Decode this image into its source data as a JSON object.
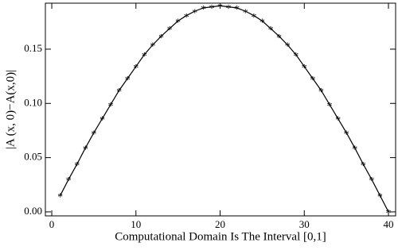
{
  "chart_data": {
    "type": "line",
    "x_label": "Computational Domain Is The Interval [0,1]",
    "y_label": "|A (x, 0)−A(x,0)|",
    "x": [
      1,
      2,
      3,
      4,
      5,
      6,
      7,
      8,
      9,
      10,
      11,
      12,
      13,
      14,
      15,
      16,
      17,
      18,
      19,
      20,
      21,
      22,
      23,
      24,
      25,
      26,
      27,
      28,
      29,
      30,
      31,
      32,
      33,
      34,
      35,
      36,
      37,
      38,
      39,
      40
    ],
    "series": [
      {
        "color": "#000000",
        "marker": "*",
        "values": [
          0.015,
          0.03,
          0.044,
          0.059,
          0.073,
          0.086,
          0.099,
          0.112,
          0.123,
          0.134,
          0.145,
          0.154,
          0.162,
          0.169,
          0.176,
          0.181,
          0.185,
          0.188,
          0.189,
          0.19,
          0.189,
          0.188,
          0.185,
          0.181,
          0.176,
          0.169,
          0.162,
          0.154,
          0.145,
          0.134,
          0.123,
          0.112,
          0.099,
          0.086,
          0.073,
          0.059,
          0.044,
          0.03,
          0.015,
          0.0
        ]
      }
    ],
    "xlim": [
      -0.76,
      40.85
    ],
    "xticks": [
      0,
      10,
      20,
      30,
      40
    ],
    "ylim": [
      -0.0037,
      0.1924
    ],
    "yticks": [
      {
        "value": 0,
        "label": "0.00"
      },
      {
        "value": 0.05,
        "label": "0.05"
      },
      {
        "value": 0.1,
        "label": "0.10"
      },
      {
        "value": 0.15,
        "label": "0.15"
      }
    ]
  }
}
